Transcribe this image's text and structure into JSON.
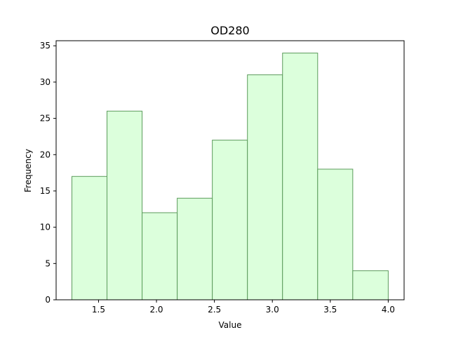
{
  "chart_data": {
    "type": "histogram",
    "title": "OD280",
    "xlabel": "Value",
    "ylabel": "Frequency",
    "bins": [
      {
        "start": 1.27,
        "end": 1.573,
        "count": 17
      },
      {
        "start": 1.573,
        "end": 1.876,
        "count": 26
      },
      {
        "start": 1.876,
        "end": 2.179,
        "count": 12
      },
      {
        "start": 2.179,
        "end": 2.482,
        "count": 14
      },
      {
        "start": 2.482,
        "end": 2.785,
        "count": 22
      },
      {
        "start": 2.785,
        "end": 3.088,
        "count": 31
      },
      {
        "start": 3.088,
        "end": 3.391,
        "count": 34
      },
      {
        "start": 3.391,
        "end": 3.694,
        "count": 18
      },
      {
        "start": 3.694,
        "end": 4.0,
        "count": 4
      }
    ],
    "xlim": [
      1.134,
      4.137
    ],
    "ylim": [
      0,
      35.7
    ],
    "xticks": [
      1.5,
      2.0,
      2.5,
      3.0,
      3.5,
      4.0
    ],
    "xtick_labels": [
      "1.5",
      "2.0",
      "2.5",
      "3.0",
      "3.5",
      "4.0"
    ],
    "yticks": [
      0,
      5,
      10,
      15,
      20,
      25,
      30,
      35
    ],
    "ytick_labels": [
      "0",
      "5",
      "10",
      "15",
      "20",
      "25",
      "30",
      "35"
    ],
    "bar_fill": "#dcffdc",
    "bar_edge": "#5c9b5c",
    "grid": false,
    "legend": "none"
  }
}
